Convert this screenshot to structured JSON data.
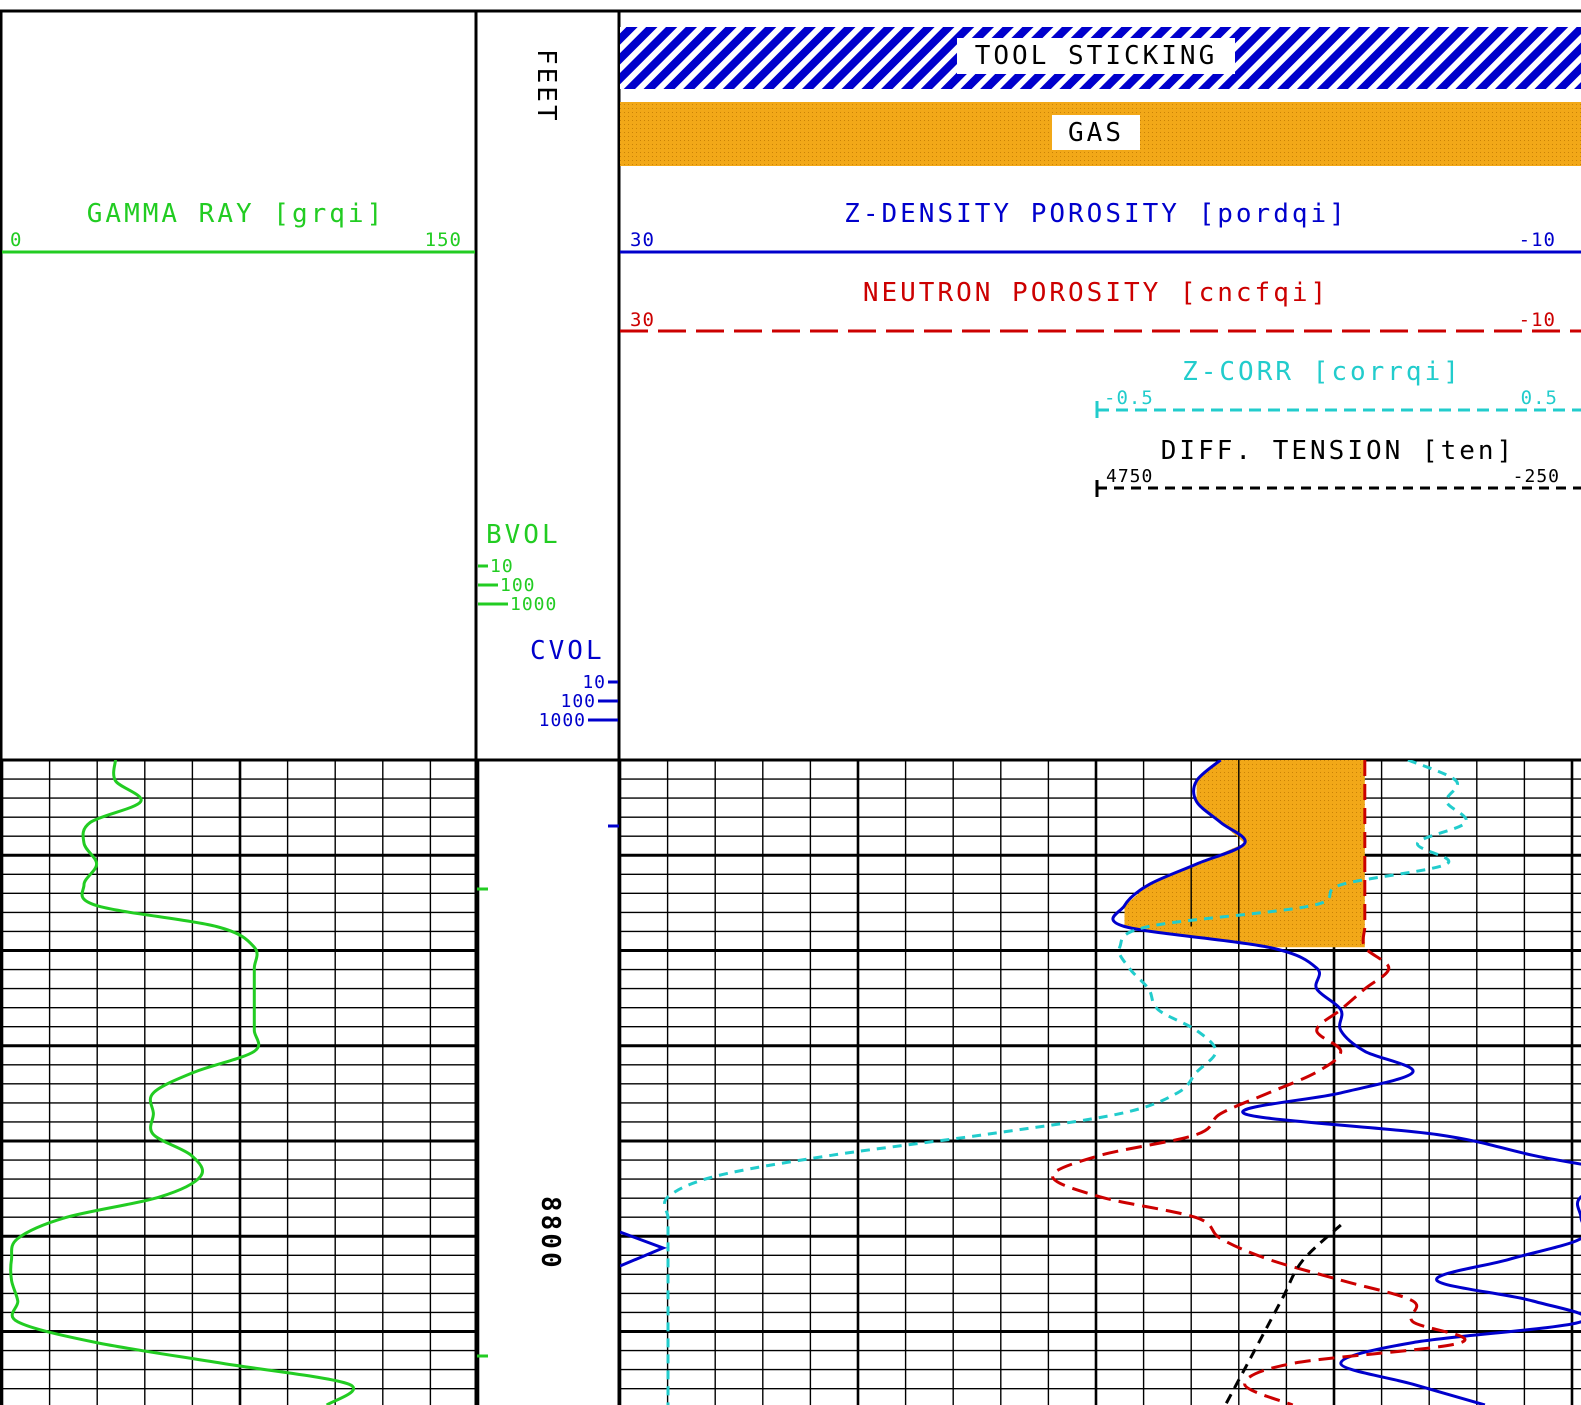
{
  "depth_track": {
    "unit_label": "FEET",
    "depth_label": "8800",
    "bvol": {
      "title": "BVOL",
      "ticks": [
        "10",
        "100",
        "1000"
      ]
    },
    "cvol": {
      "title": "CVOL",
      "ticks": [
        "10",
        "100",
        "1000"
      ]
    }
  },
  "flags": {
    "tool_sticking": {
      "label": "TOOL STICKING",
      "color": "#0000cc"
    },
    "gas": {
      "label": "GAS",
      "color": "#f2a818"
    }
  },
  "colors": {
    "gamma": "#22cc22",
    "density": "#0000cc",
    "neutron": "#cc0000",
    "corr": "#22cccc",
    "tension": "#000000",
    "grid": "#000000"
  },
  "chart_data": {
    "type": "line",
    "grid": true,
    "y_reference": {
      "label": "8800",
      "unit": "FEET"
    },
    "curves": [
      {
        "key": "gamma",
        "track": 1,
        "title": "GAMMA RAY [grqi]",
        "scale_left": "0",
        "scale_right": "150",
        "xlim": [
          0,
          150
        ],
        "style": "solid",
        "values": [
          36,
          36,
          44,
          28,
          26,
          30,
          26,
          30,
          68,
          80,
          80,
          80,
          80,
          80,
          80,
          61,
          48,
          48,
          48,
          60,
          63,
          50,
          20,
          5,
          3,
          3,
          5,
          5,
          30,
          70,
          110,
          103
        ]
      },
      {
        "key": "density",
        "track": 2,
        "title": "Z-DENSITY POROSITY [pordqi]",
        "scale_left": "30",
        "scale_right": "-10",
        "xlim": [
          30,
          -10
        ],
        "style": "solid",
        "values": [
          5,
          6,
          6,
          5,
          4,
          6,
          8,
          9,
          9,
          3,
          1,
          1,
          0,
          0,
          -1,
          -3,
          0,
          4,
          -4,
          -8,
          -12,
          -10,
          -10,
          -10,
          -7,
          -4,
          -8,
          -10,
          -3,
          0,
          -3,
          -6
        ]
      },
      {
        "key": "neutron",
        "track": 2,
        "title": "NEUTRON POROSITY [cncfqi]",
        "scale_left": "30",
        "scale_right": "-10",
        "xlim": [
          30,
          -10
        ],
        "style": "dashed",
        "values": [
          -1,
          -1,
          -1,
          -1,
          -1,
          -1,
          -1,
          -1,
          -1,
          -1,
          -2,
          -1,
          0,
          1,
          0,
          1,
          3,
          5,
          6,
          10,
          12,
          10,
          6,
          5,
          3,
          0,
          -3,
          -3,
          -5,
          2,
          4,
          2
        ]
      },
      {
        "key": "corr",
        "track": 2,
        "title": "Z-CORR [corrqi]",
        "scale_left": "-0.5",
        "scale_right": "0.5",
        "xlim": [
          -0.5,
          0.5
        ],
        "style": "dashed",
        "values": [
          0.32,
          0.37,
          0.36,
          0.38,
          0.33,
          0.36,
          0.25,
          0.22,
          0.05,
          0.02,
          0.03,
          0.05,
          0.06,
          0.1,
          0.12,
          0.1,
          0.08,
          0.02,
          -0.12,
          -0.28,
          -0.4,
          -0.45,
          -0.45,
          -0.45,
          -0.45,
          -0.45,
          -0.45,
          -0.45,
          -0.45,
          -0.45,
          -0.45,
          -0.45
        ]
      },
      {
        "key": "tension",
        "track": 2,
        "title": "DIFF. TENSION [ten]",
        "scale_left": "4750",
        "scale_right": "-250",
        "xlim": [
          4750,
          -250
        ],
        "style": "dashed",
        "values": [
          1000,
          1200,
          1300,
          1400,
          1500,
          1600
        ]
      }
    ],
    "shading": {
      "label": "GAS",
      "between": [
        "density",
        "neutron"
      ],
      "color": "#f2a818"
    }
  }
}
